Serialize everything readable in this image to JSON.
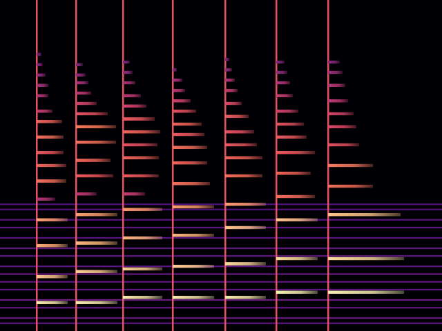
{
  "chart_data": {
    "type": "spectrogram",
    "xlim": [
      0,
      320
    ],
    "ylim": [
      0,
      128
    ],
    "tick_labels": false,
    "level_range": [
      -80,
      0
    ],
    "background": [
      [
        3,
        -58
      ],
      [
        5,
        -56
      ],
      [
        9,
        -57
      ],
      [
        12,
        -55
      ],
      [
        16,
        -58
      ],
      [
        19,
        -57
      ],
      [
        22,
        -56
      ],
      [
        25,
        -58
      ],
      [
        29,
        -57
      ],
      [
        32,
        -58
      ],
      [
        36,
        -59
      ],
      [
        40,
        -58
      ],
      [
        43,
        -59
      ],
      [
        47,
        -60
      ],
      [
        49,
        -60
      ]
    ],
    "notes": [
      {
        "onset": 26.5,
        "attack": -30,
        "partials": [
          [
            11,
            49,
            -3
          ],
          [
            21,
            49,
            -10
          ],
          [
            33,
            49,
            -14
          ],
          [
            43,
            49,
            -16
          ],
          [
            51,
            40,
            -40
          ],
          [
            58,
            48,
            -24
          ],
          [
            64,
            48,
            -26
          ],
          [
            69,
            46,
            -28
          ],
          [
            75,
            46,
            -24
          ],
          [
            81,
            45,
            -26
          ],
          [
            85,
            38,
            -36
          ],
          [
            91,
            35,
            -40
          ],
          [
            95,
            35,
            -42
          ],
          [
            99,
            33,
            -46
          ],
          [
            103,
            31,
            -50
          ],
          [
            107,
            30,
            -52
          ]
        ]
      },
      {
        "onset": 55,
        "attack": -30,
        "partials": [
          [
            11,
            85,
            -3
          ],
          [
            23,
            85,
            -8
          ],
          [
            34,
            85,
            -12
          ],
          [
            45,
            85,
            -16
          ],
          [
            53,
            70,
            -38
          ],
          [
            60,
            82,
            -28
          ],
          [
            66,
            80,
            -26
          ],
          [
            73,
            84,
            -24
          ],
          [
            79,
            84,
            -22
          ],
          [
            84,
            78,
            -30
          ],
          [
            88,
            70,
            -34
          ],
          [
            92,
            66,
            -38
          ],
          [
            96,
            64,
            -42
          ],
          [
            99,
            62,
            -46
          ],
          [
            103,
            60,
            -50
          ]
        ]
      },
      {
        "onset": 89,
        "attack": -30,
        "partials": [
          [
            13,
            117.5,
            -3
          ],
          [
            24,
            117.5,
            -8
          ],
          [
            36,
            117.5,
            -12
          ],
          [
            47,
            117.5,
            -18
          ],
          [
            53,
            105,
            -36
          ],
          [
            60,
            115,
            -28
          ],
          [
            67,
            115,
            -26
          ],
          [
            72,
            114,
            -30
          ],
          [
            77,
            116,
            -26
          ],
          [
            82,
            112,
            -28
          ],
          [
            87,
            106,
            -34
          ],
          [
            91,
            102,
            -38
          ],
          [
            96,
            98,
            -42
          ],
          [
            100,
            96,
            -46
          ],
          [
            104,
            94,
            -50
          ]
        ]
      },
      {
        "onset": 125,
        "attack": -30,
        "partials": [
          [
            13,
            155,
            -3
          ],
          [
            25,
            155,
            -8
          ],
          [
            37,
            155,
            -12
          ],
          [
            48,
            155,
            -16
          ],
          [
            57,
            152,
            -24
          ],
          [
            65,
            150,
            -26
          ],
          [
            71,
            150,
            -24
          ],
          [
            76,
            148,
            -28
          ],
          [
            80,
            146,
            -26
          ],
          [
            85,
            142,
            -30
          ],
          [
            89,
            138,
            -34
          ],
          [
            93,
            134,
            -38
          ],
          [
            97,
            132,
            -42
          ],
          [
            101,
            128,
            -48
          ]
        ]
      },
      {
        "onset": 163,
        "attack": -30,
        "partials": [
          [
            13,
            192.5,
            -3
          ],
          [
            26,
            192.5,
            -6
          ],
          [
            40,
            192.5,
            -10
          ],
          [
            49,
            192.5,
            -16
          ],
          [
            60,
            190,
            -24
          ],
          [
            67,
            190,
            -26
          ],
          [
            72,
            186,
            -28
          ],
          [
            77,
            184,
            -30
          ],
          [
            83,
            180,
            -28
          ],
          [
            88,
            175,
            -32
          ],
          [
            93,
            172,
            -36
          ],
          [
            97,
            170,
            -40
          ],
          [
            101,
            168,
            -46
          ],
          [
            105,
            166,
            -50
          ]
        ]
      },
      {
        "onset": 200,
        "attack": -30,
        "partials": [
          [
            15,
            230,
            -2
          ],
          [
            28,
            230,
            -6
          ],
          [
            43,
            230,
            -10
          ],
          [
            52,
            228,
            -24
          ],
          [
            61,
            225,
            -26
          ],
          [
            69,
            228,
            -28
          ],
          [
            75,
            222,
            -28
          ],
          [
            80,
            220,
            -30
          ],
          [
            85,
            216,
            -34
          ],
          [
            91,
            212,
            -36
          ],
          [
            96,
            210,
            -40
          ],
          [
            100,
            208,
            -46
          ],
          [
            104,
            206,
            -50
          ]
        ]
      },
      {
        "onset": 237.5,
        "attack": -30,
        "partials": [
          [
            15,
            292.5,
            -2
          ],
          [
            28,
            292.5,
            -6
          ],
          [
            45,
            290,
            -10
          ],
          [
            56,
            270,
            -24
          ],
          [
            64,
            270,
            -22
          ],
          [
            72,
            260,
            -30
          ],
          [
            79,
            258,
            -32
          ],
          [
            84,
            256,
            -34
          ],
          [
            89,
            252,
            -38
          ],
          [
            95,
            250,
            -40
          ],
          [
            100,
            248,
            -44
          ],
          [
            104,
            246,
            -48
          ]
        ]
      }
    ]
  }
}
